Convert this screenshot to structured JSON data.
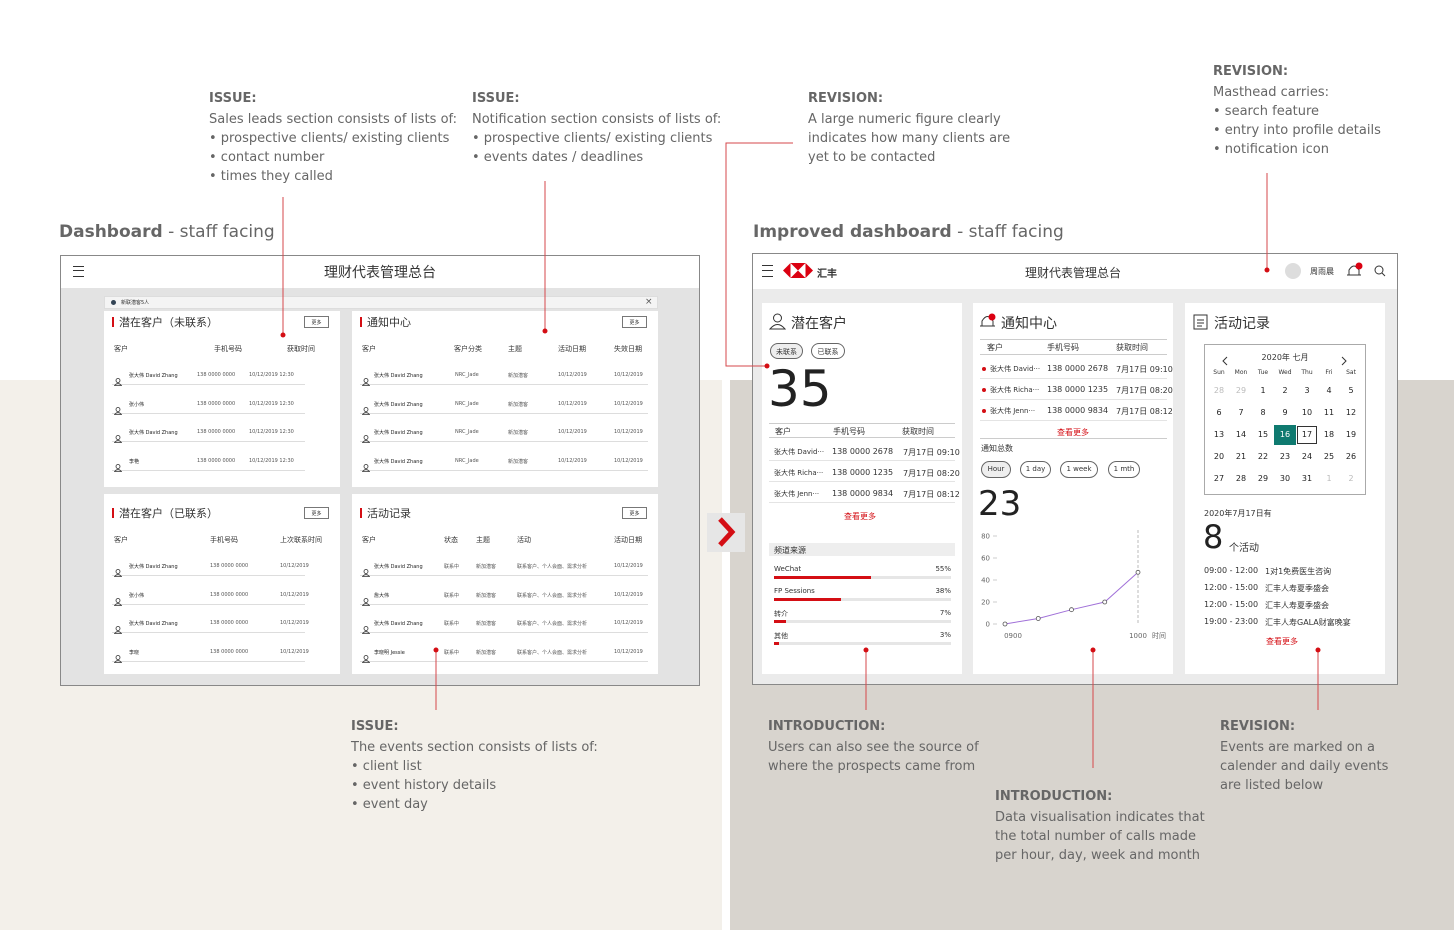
{
  "section_titles": [
    {
      "bold": "Dashboard",
      "rest": " - staff facing"
    },
    {
      "bold": "Improved dashboard",
      "rest": " - staff facing"
    }
  ],
  "annotations": [
    {
      "title": "ISSUE:",
      "lines": [
        "Sales leads section consists of lists of:",
        "• prospective clients/ existing clients",
        "• contact number",
        "• times they called"
      ]
    },
    {
      "title": "ISSUE:",
      "lines": [
        "Notification section consists of lists of:",
        "• prospective clients/ existing clients",
        "• events dates / deadlines"
      ]
    },
    {
      "title": "REVISION:",
      "lines": [
        "A large numeric figure clearly",
        "indicates how many clients are",
        "yet to be contacted"
      ]
    },
    {
      "title": "REVISION:",
      "lines": [
        "Masthead carries:",
        "• search feature",
        "• entry into profile details",
        "• notification icon"
      ]
    },
    {
      "title": "ISSUE:",
      "lines": [
        "The events section consists of lists of:",
        "• client list",
        "• event history details",
        "• event day"
      ]
    },
    {
      "title": "INTRODUCTION:",
      "lines": [
        "Users can also see the source of",
        "where the prospects came from"
      ]
    },
    {
      "title": "INTRODUCTION:",
      "lines": [
        "Data visualisation indicates that",
        "the total number of calls made",
        "per hour, day, week and month"
      ]
    },
    {
      "title": "REVISION:",
      "lines": [
        "Events are marked on a",
        "calender and daily events",
        "are listed below"
      ]
    }
  ],
  "old_dashboard": {
    "title": "理财代表管理总台",
    "banner": "新联潜客5人",
    "panels": [
      {
        "title": "潜在客户（未联系）",
        "button": "更多",
        "headers": [
          "客户",
          "手机号码",
          "获取时间"
        ],
        "rows": [
          [
            "张大伟 David Zhang",
            "138 0000 0000",
            "10/12/2019 12:30"
          ],
          [
            "张小伟",
            "138 0000 0000",
            "10/12/2019 12:30"
          ],
          [
            "张大伟 David Zhang",
            "138 0000 0000",
            "10/12/2019 12:30"
          ],
          [
            "李艳",
            "138 0000 0000",
            "10/12/2019 12:30"
          ]
        ]
      },
      {
        "title": "通知中心",
        "button": "更多",
        "headers": [
          "客户",
          "客户分类",
          "主题",
          "活动日期",
          "失效日期"
        ],
        "rows": [
          [
            "张大伟 David Zhang",
            "NRC_Jade",
            "新加潜客",
            "10/12/2019",
            "10/12/2019"
          ],
          [
            "张大伟 David Zhang",
            "NRC_Jade",
            "新加潜客",
            "10/12/2019",
            "10/12/2019"
          ],
          [
            "张大伟 David Zhang",
            "NRC_Jade",
            "新加潜客",
            "10/12/2019",
            "10/12/2019"
          ],
          [
            "张大伟 David Zhang",
            "NRC_Jade",
            "新加潜客",
            "10/12/2019",
            "10/12/2019"
          ]
        ]
      },
      {
        "title": "潜在客户（已联系）",
        "button": "更多",
        "headers": [
          "客户",
          "手机号码",
          "上次联系时间"
        ],
        "rows": [
          [
            "张大伟 David Zhang",
            "138 0000 0000",
            "10/12/2019"
          ],
          [
            "张小伟",
            "138 0000 0000",
            "10/12/2019"
          ],
          [
            "张大伟 David Zhang",
            "138 0000 0000",
            "10/12/2019"
          ],
          [
            "李晓",
            "138 0000 0000",
            "10/12/2019"
          ]
        ]
      },
      {
        "title": "活动记录",
        "button": "更多",
        "headers": [
          "客户",
          "状态",
          "主题",
          "活动",
          "活动日期"
        ],
        "rows": [
          [
            "张大伟 David Zhang",
            "联系中",
            "新加潜客",
            "联系客户、个人会面、需求分析",
            "10/12/2019"
          ],
          [
            "詹大伟",
            "联系中",
            "新加潜客",
            "联系客户、个人会面、需求分析",
            "10/12/2019"
          ],
          [
            "张大伟 David Zhang",
            "联系中",
            "新加潜客",
            "联系客户、个人会面、需求分析",
            "10/12/2019"
          ],
          [
            "李晓明 Jessie",
            "联系中",
            "新加潜客",
            "联系客户、个人会面、需求分析",
            "10/12/2019"
          ]
        ]
      }
    ]
  },
  "new_dashboard": {
    "brand": "汇丰",
    "title": "理财代表管理总台",
    "user": "周雨晨",
    "leads": {
      "title": "潜在客户",
      "chips": [
        "未联系",
        "已联系"
      ],
      "count": 35,
      "headers": [
        "客户",
        "手机号码",
        "获取时间"
      ],
      "rows": [
        [
          "张大伟 David···",
          "138 0000 2678",
          "7月17日 09:10"
        ],
        [
          "张大伟 Richa···",
          "138 0000 1235",
          "7月17日 08:20"
        ],
        [
          "张大伟 Jenn···",
          "138 0000 9834",
          "7月17日 08:12"
        ]
      ],
      "more": "查看更多",
      "source_title": "频道来源",
      "sources": [
        {
          "name": "WeChat",
          "value": 55,
          "label": "55%"
        },
        {
          "name": "FP Sessions",
          "value": 38,
          "label": "38%"
        },
        {
          "name": "转介",
          "value": 7,
          "label": "7%"
        },
        {
          "name": "其他",
          "value": 3,
          "label": "3%"
        }
      ]
    },
    "notifications": {
      "title": "通知中心",
      "headers": [
        "客户",
        "手机号码",
        "获取时间"
      ],
      "rows": [
        [
          "张大伟 David···",
          "138 0000 2678",
          "7月17日 09:10"
        ],
        [
          "张大伟 Richa···",
          "138 0000 1235",
          "7月17日 08:20"
        ],
        [
          "张大伟 Jenn···",
          "138 0000 9834",
          "7月17日 08:12"
        ]
      ],
      "more": "查看更多",
      "total_label": "通知总数",
      "ranges": [
        "Hour",
        "1 day",
        "1 week",
        "1 mth"
      ],
      "count": 23
    },
    "activities": {
      "title": "活动记录",
      "month": "2020年 七月",
      "weekdays": [
        "Sun",
        "Mon",
        "Tue",
        "Wed",
        "Thu",
        "Fri",
        "Sat"
      ],
      "weeks": [
        [
          28,
          29,
          1,
          2,
          3,
          4,
          5
        ],
        [
          6,
          7,
          8,
          9,
          10,
          11,
          12
        ],
        [
          13,
          14,
          15,
          16,
          17,
          18,
          19
        ],
        [
          20,
          21,
          22,
          23,
          24,
          25,
          26
        ],
        [
          27,
          28,
          29,
          30,
          31,
          1,
          2
        ]
      ],
      "date_label": "2020年7月17日有",
      "count": 8,
      "count_unit": "个活动",
      "events": [
        [
          "09:00 - 12:00",
          "1对1免费医生咨询"
        ],
        [
          "12:00 - 15:00",
          "汇丰人寿夏季盛会"
        ],
        [
          "12:00 - 15:00",
          "汇丰人寿夏季盛会"
        ],
        [
          "19:00 - 23:00",
          "汇丰人寿GALA财富晚宴"
        ]
      ],
      "more": "查看更多"
    }
  },
  "chart_data": {
    "type": "line",
    "categories": [
      "0900",
      null,
      null,
      null,
      "1000"
    ],
    "x_label": "时间",
    "values": [
      0,
      5,
      13,
      20,
      47
    ],
    "color": "#a070d8",
    "ylim": [
      0,
      80
    ],
    "yticks": [
      0,
      20,
      40,
      60,
      80
    ]
  }
}
